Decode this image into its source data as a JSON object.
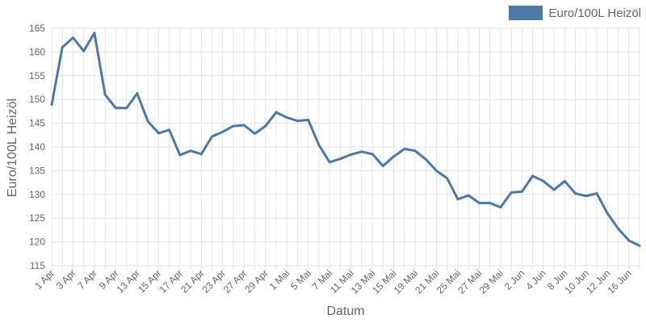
{
  "chart_data": {
    "type": "line",
    "xlabel": "Datum",
    "ylabel": "Euro/100L Heizöl",
    "ylim": [
      115,
      165
    ],
    "yticks": [
      115,
      120,
      125,
      130,
      135,
      140,
      145,
      150,
      155,
      160,
      165
    ],
    "grid": true,
    "legend_position": "top-right",
    "x": [
      "1 Apr",
      "2 Apr",
      "3 Apr",
      "6 Apr",
      "7 Apr",
      "8 Apr",
      "9 Apr",
      "10 Apr",
      "13 Apr",
      "14 Apr",
      "15 Apr",
      "16 Apr",
      "17 Apr",
      "20 Apr",
      "21 Apr",
      "22 Apr",
      "23 Apr",
      "24 Apr",
      "27 Apr",
      "28 Apr",
      "29 Apr",
      "30 Apr",
      "1 Mai",
      "4 Mai",
      "5 Mai",
      "6 Mai",
      "7 Mai",
      "8 Mai",
      "11 Mai",
      "12 Mai",
      "13 Mai",
      "14 Mai",
      "15 Mai",
      "18 Mai",
      "19 Mai",
      "20 Mai",
      "21 Mai",
      "22 Mai",
      "25 Mai",
      "26 Mai",
      "27 Mai",
      "28 Mai",
      "29 Mai",
      "1 Jun",
      "2 Jun",
      "3 Jun",
      "4 Jun",
      "5 Jun",
      "8 Jun",
      "9 Jun",
      "10 Jun",
      "11 Jun",
      "12 Jun",
      "15 Jun",
      "16 Jun",
      "17 Jun"
    ],
    "tick_labels": [
      "1 Apr",
      "3 Apr",
      "7 Apr",
      "9 Apr",
      "13 Apr",
      "15 Apr",
      "17 Apr",
      "21 Apr",
      "23 Apr",
      "27 Apr",
      "29 Apr",
      "1 Mai",
      "5 Mai",
      "7 Mai",
      "11 Mai",
      "13 Mai",
      "15 Mai",
      "19 Mai",
      "21 Mai",
      "25 Mai",
      "27 Mai",
      "29 Mai",
      "2 Jun",
      "4 Jun",
      "8 Jun",
      "10 Jun",
      "12 Jun",
      "16 Jun"
    ],
    "series": [
      {
        "name": "Euro/100L Heizöl",
        "color": "#4e79a7",
        "values": [
          148.9,
          161.0,
          163.0,
          160.2,
          164.0,
          151.0,
          148.2,
          148.2,
          151.3,
          145.4,
          142.9,
          143.6,
          138.3,
          139.2,
          138.5,
          142.2,
          143.2,
          144.4,
          144.6,
          142.8,
          144.4,
          147.3,
          146.2,
          145.5,
          145.7,
          140.4,
          136.8,
          137.5,
          138.4,
          139.0,
          138.5,
          136.0,
          138.0,
          139.6,
          139.2,
          137.4,
          135.0,
          133.4,
          129.0,
          129.8,
          128.2,
          128.2,
          127.3,
          130.4,
          130.6,
          133.9,
          132.8,
          131.0,
          132.8,
          130.2,
          129.7,
          130.2,
          126.0,
          122.8,
          120.3,
          119.2
        ]
      }
    ]
  }
}
